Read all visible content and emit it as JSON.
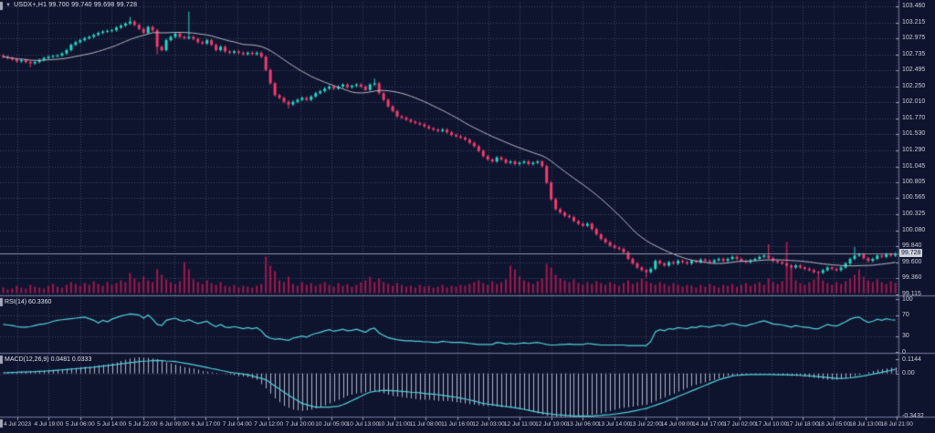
{
  "window": {
    "symbol": "USDX+,H1",
    "ohlc_text": "99.700 99.740 99.698 99.728",
    "dropdown_icon": "▼"
  },
  "indicators": {
    "rsi_label": "RSI(14) 60.3360",
    "macd_label": "MACD(12,26,9) 0.0481 0.0333"
  },
  "axes": {
    "price_ticks": [
      "103.460",
      "103.215",
      "102.975",
      "102.735",
      "102.495",
      "102.250",
      "102.010",
      "101.770",
      "101.530",
      "101.290",
      "101.045",
      "100.805",
      "100.565",
      "100.325",
      "100.080",
      "99.840",
      "99.600",
      "99.360",
      "99.115"
    ],
    "current_price": "99.728",
    "rsi_ticks": [
      "100",
      "70",
      "30",
      "0"
    ],
    "macd_ticks": [
      "0.1144",
      "0.00",
      "-0.3432"
    ],
    "time_labels": [
      "4 Jul 2023",
      "4 Jul 19:00",
      "5 Jul 06:00",
      "5 Jul 14:00",
      "5 Jul 22:00",
      "6 Jul 09:00",
      "6 Jul 17:00",
      "7 Jul 04:00",
      "7 Jul 12:00",
      "7 Jul 20:00",
      "10 Jul 05:00",
      "10 Jul 13:00",
      "10 Jul 21:00",
      "11 Jul 08:00",
      "11 Jul 16:00",
      "12 Jul 03:00",
      "12 Jul 11:00",
      "12 Jul 19:00",
      "13 Jul 06:00",
      "13 Jul 14:00",
      "13 Jul 22:00",
      "14 Jul 09:00",
      "14 Jul 17:00",
      "17 Jul 02:00",
      "17 Jul 10:00",
      "17 Jul 18:00",
      "18 Jul 05:00",
      "18 Jul 13:00",
      "18 Jul 21:00"
    ]
  },
  "colors": {
    "background": "#0f142e",
    "grid": "#3d4466",
    "bull": "#22d7c6",
    "bear": "#f13c6e",
    "ma": "#b4b8c4",
    "volume": "#a21850",
    "indicator_line": "#4fd2da",
    "histogram": "#aeb4c9",
    "axis_text": "#c9cdda",
    "separator": "#6e7694",
    "price_line": "#8e94a8",
    "badge_bg": "#ced2de",
    "badge_text": "#101530"
  },
  "chart_data": {
    "type": "candlestick",
    "title": "USDX+,H1",
    "timeframe": "H1",
    "last_ohlc": {
      "open": 99.7,
      "high": 99.74,
      "low": 99.698,
      "close": 99.728
    },
    "price_range": [
      99.115,
      103.46
    ],
    "rsi_range": [
      0,
      100
    ],
    "rsi_levels": [
      70,
      30
    ],
    "rsi_last": 60.336,
    "macd_range": [
      -0.3432,
      0.1144
    ],
    "macd_last": 0.0481,
    "macd_signal_last": 0.0333,
    "ma_period": 20,
    "closes": [
      102.7,
      102.68,
      102.66,
      102.63,
      102.65,
      102.62,
      102.6,
      102.62,
      102.65,
      102.68,
      102.7,
      102.71,
      102.72,
      102.75,
      102.8,
      102.88,
      102.92,
      102.95,
      102.98,
      103.0,
      103.03,
      103.06,
      103.08,
      103.09,
      103.1,
      103.14,
      103.17,
      103.2,
      103.23,
      103.18,
      103.12,
      103.06,
      103.15,
      103.1,
      102.85,
      102.8,
      102.95,
      103.0,
      103.05,
      103.0,
      102.98,
      103.0,
      102.97,
      102.92,
      102.9,
      102.95,
      102.88,
      102.8,
      102.85,
      102.78,
      102.76,
      102.78,
      102.76,
      102.74,
      102.76,
      102.74,
      102.76,
      102.7,
      102.5,
      102.3,
      102.12,
      102.08,
      102.02,
      101.98,
      102.02,
      102.05,
      102.08,
      102.05,
      102.1,
      102.15,
      102.18,
      102.22,
      102.25,
      102.22,
      102.25,
      102.28,
      102.24,
      102.26,
      102.28,
      102.25,
      102.2,
      102.28,
      102.3,
      102.15,
      102.05,
      101.95,
      101.88,
      101.8,
      101.78,
      101.75,
      101.72,
      101.7,
      101.68,
      101.65,
      101.62,
      101.6,
      101.58,
      101.6,
      101.56,
      101.52,
      101.5,
      101.48,
      101.45,
      101.4,
      101.35,
      101.28,
      101.2,
      101.15,
      101.12,
      101.18,
      101.15,
      101.1,
      101.12,
      101.08,
      101.1,
      101.12,
      101.08,
      101.1,
      101.12,
      101.05,
      100.8,
      100.55,
      100.4,
      100.35,
      100.3,
      100.28,
      100.22,
      100.18,
      100.15,
      100.18,
      100.1,
      100.02,
      99.95,
      99.9,
      99.85,
      99.82,
      99.8,
      99.75,
      99.65,
      99.58,
      99.52,
      99.48,
      99.45,
      99.5,
      99.62,
      99.58,
      99.55,
      99.6,
      99.58,
      99.62,
      99.6,
      99.58,
      99.62,
      99.6,
      99.64,
      99.62,
      99.6,
      99.63,
      99.65,
      99.62,
      99.65,
      99.68,
      99.65,
      99.62,
      99.6,
      99.63,
      99.65,
      99.68,
      99.7,
      99.66,
      99.62,
      99.6,
      99.58,
      99.55,
      99.52,
      99.55,
      99.52,
      99.5,
      99.48,
      99.45,
      99.44,
      99.48,
      99.52,
      99.5,
      99.48,
      99.52,
      99.58,
      99.65,
      99.7,
      99.72,
      99.66,
      99.62,
      99.65,
      99.7,
      99.68,
      99.72,
      99.7,
      99.728
    ],
    "wick_overrides": [
      [
        6,
        null,
        102.54
      ],
      [
        28,
        103.3,
        null
      ],
      [
        34,
        null,
        102.74
      ],
      [
        41,
        103.38,
        null
      ],
      [
        63,
        null,
        101.92
      ],
      [
        82,
        102.37,
        null
      ],
      [
        142,
        null,
        99.37
      ],
      [
        169,
        99.87,
        null
      ],
      [
        180,
        null,
        99.38
      ],
      [
        188,
        99.83,
        null
      ]
    ],
    "volumes": [
      6,
      4,
      5,
      8,
      6,
      5,
      9,
      7,
      6,
      5,
      8,
      10,
      7,
      6,
      9,
      12,
      10,
      8,
      11,
      9,
      13,
      10,
      8,
      12,
      9,
      11,
      14,
      12,
      22,
      16,
      12,
      18,
      14,
      12,
      26,
      20,
      15,
      12,
      10,
      13,
      34,
      26,
      15,
      12,
      10,
      14,
      11,
      9,
      12,
      8,
      7,
      9,
      6,
      8,
      7,
      6,
      8,
      10,
      40,
      30,
      24,
      14,
      12,
      18,
      10,
      8,
      12,
      9,
      11,
      8,
      10,
      12,
      9,
      7,
      11,
      8,
      10,
      7,
      9,
      12,
      14,
      18,
      12,
      16,
      12,
      10,
      8,
      11,
      9,
      7,
      8,
      6,
      9,
      7,
      8,
      6,
      7,
      9,
      6,
      8,
      7,
      9,
      8,
      10,
      12,
      14,
      11,
      9,
      13,
      10,
      12,
      15,
      30,
      26,
      18,
      14,
      12,
      10,
      13,
      16,
      32,
      28,
      20,
      16,
      14,
      12,
      15,
      11,
      9,
      12,
      10,
      13,
      11,
      9,
      12,
      10,
      8,
      11,
      14,
      10,
      12,
      16,
      13,
      11,
      9,
      12,
      10,
      8,
      11,
      9,
      7,
      9,
      8,
      6,
      9,
      7,
      10,
      8,
      6,
      9,
      8,
      10,
      7,
      9,
      11,
      8,
      10,
      12,
      9,
      16,
      12,
      10,
      13,
      56,
      30,
      14,
      11,
      9,
      12,
      15,
      18,
      14,
      11,
      9,
      12,
      10,
      13,
      16,
      20,
      26,
      18,
      14,
      12,
      15,
      12,
      10,
      13,
      11
    ],
    "rsi": [
      52,
      51,
      50,
      48,
      47,
      47,
      48,
      50,
      52,
      53,
      55,
      58,
      60,
      61,
      62,
      63,
      64,
      65,
      66,
      63,
      60,
      55,
      60,
      57,
      62,
      65,
      68,
      70,
      72,
      71,
      70,
      64,
      70,
      62,
      52,
      50,
      60,
      62,
      64,
      60,
      58,
      61,
      57,
      54,
      56,
      58,
      52,
      48,
      52,
      47,
      46,
      48,
      46,
      44,
      46,
      44,
      46,
      40,
      30,
      26,
      24,
      25,
      23,
      22,
      26,
      28,
      30,
      28,
      32,
      35,
      37,
      40,
      42,
      39,
      41,
      43,
      40,
      41,
      43,
      40,
      37,
      43,
      45,
      36,
      31,
      27,
      25,
      23,
      22,
      21,
      21,
      20,
      20,
      19,
      19,
      18,
      18,
      20,
      19,
      18,
      18,
      18,
      17,
      16,
      15,
      14,
      14,
      14,
      14,
      18,
      17,
      15,
      16,
      15,
      16,
      17,
      16,
      17,
      18,
      16,
      14,
      13,
      13,
      14,
      14,
      15,
      14,
      14,
      14,
      16,
      15,
      14,
      13,
      13,
      13,
      13,
      13,
      13,
      12,
      12,
      12,
      12,
      12,
      20,
      38,
      42,
      40,
      44,
      43,
      46,
      45,
      44,
      47,
      46,
      49,
      48,
      47,
      49,
      51,
      49,
      52,
      54,
      52,
      50,
      49,
      52,
      54,
      57,
      59,
      56,
      53,
      52,
      51,
      49,
      47,
      50,
      48,
      47,
      46,
      44,
      44,
      48,
      52,
      50,
      49,
      53,
      57,
      62,
      65,
      66,
      60,
      56,
      58,
      62,
      60,
      63,
      61,
      60.3
    ],
    "macd_hist": [
      0.01,
      0.012,
      0.013,
      0.014,
      0.015,
      0.017,
      0.018,
      0.019,
      0.02,
      0.025,
      0.028,
      0.029,
      0.03,
      0.034,
      0.038,
      0.041,
      0.045,
      0.049,
      0.053,
      0.056,
      0.06,
      0.065,
      0.07,
      0.075,
      0.08,
      0.09,
      0.1,
      0.11,
      0.12,
      0.125,
      0.13,
      0.128,
      0.125,
      0.12,
      0.115,
      0.103,
      0.09,
      0.08,
      0.07,
      0.06,
      0.05,
      0.045,
      0.04,
      0.03,
      0.02,
      0.015,
      0.01,
      0.005,
      0.0,
      -0.005,
      -0.01,
      -0.015,
      -0.02,
      -0.025,
      -0.03,
      -0.04,
      -0.05,
      -0.085,
      -0.12,
      -0.16,
      -0.2,
      -0.23,
      -0.26,
      -0.275,
      -0.29,
      -0.295,
      -0.3,
      -0.295,
      -0.29,
      -0.28,
      -0.27,
      -0.255,
      -0.24,
      -0.225,
      -0.21,
      -0.195,
      -0.18,
      -0.17,
      -0.16,
      -0.155,
      -0.15,
      -0.145,
      -0.14,
      -0.15,
      -0.16,
      -0.17,
      -0.18,
      -0.185,
      -0.19,
      -0.195,
      -0.2,
      -0.205,
      -0.21,
      -0.21,
      -0.21,
      -0.215,
      -0.22,
      -0.22,
      -0.22,
      -0.225,
      -0.23,
      -0.235,
      -0.24,
      -0.245,
      -0.25,
      -0.255,
      -0.26,
      -0.26,
      -0.26,
      -0.265,
      -0.27,
      -0.27,
      -0.27,
      -0.275,
      -0.28,
      -0.29,
      -0.3,
      -0.31,
      -0.32,
      -0.33,
      -0.34,
      -0.345,
      -0.35,
      -0.352,
      -0.355,
      -0.352,
      -0.35,
      -0.345,
      -0.34,
      -0.335,
      -0.33,
      -0.325,
      -0.32,
      -0.31,
      -0.3,
      -0.29,
      -0.28,
      -0.275,
      -0.27,
      -0.265,
      -0.26,
      -0.255,
      -0.25,
      -0.235,
      -0.22,
      -0.205,
      -0.19,
      -0.175,
      -0.16,
      -0.145,
      -0.13,
      -0.115,
      -0.1,
      -0.09,
      -0.08,
      -0.07,
      -0.06,
      -0.05,
      -0.04,
      -0.03,
      -0.02,
      -0.018,
      -0.015,
      -0.013,
      -0.01,
      -0.01,
      -0.01,
      -0.008,
      -0.005,
      -0.008,
      -0.01,
      -0.013,
      -0.015,
      -0.018,
      -0.02,
      -0.02,
      -0.02,
      -0.025,
      -0.03,
      -0.035,
      -0.04,
      -0.045,
      -0.05,
      -0.05,
      -0.05,
      -0.045,
      -0.04,
      -0.03,
      -0.02,
      -0.01,
      0.0,
      0.01,
      0.02,
      0.03,
      0.035,
      0.04,
      0.045,
      0.0481
    ],
    "macd_signal": [
      0.005,
      0.006,
      0.008,
      0.009,
      0.011,
      0.012,
      0.014,
      0.015,
      0.017,
      0.018,
      0.02,
      0.023,
      0.026,
      0.029,
      0.032,
      0.035,
      0.038,
      0.041,
      0.044,
      0.047,
      0.05,
      0.055,
      0.059,
      0.063,
      0.068,
      0.072,
      0.077,
      0.081,
      0.086,
      0.09,
      0.095,
      0.098,
      0.1,
      0.103,
      0.105,
      0.103,
      0.1,
      0.098,
      0.095,
      0.089,
      0.083,
      0.077,
      0.07,
      0.063,
      0.055,
      0.048,
      0.04,
      0.033,
      0.025,
      0.018,
      0.01,
      0.005,
      0.0,
      -0.005,
      -0.01,
      -0.02,
      -0.03,
      -0.04,
      -0.05,
      -0.075,
      -0.1,
      -0.125,
      -0.15,
      -0.173,
      -0.195,
      -0.218,
      -0.24,
      -0.25,
      -0.26,
      -0.27,
      -0.27,
      -0.27,
      -0.27,
      -0.266,
      -0.262,
      -0.25,
      -0.235,
      -0.218,
      -0.2,
      -0.183,
      -0.165,
      -0.15,
      -0.143,
      -0.139,
      -0.135,
      -0.136,
      -0.138,
      -0.14,
      -0.143,
      -0.146,
      -0.15,
      -0.152,
      -0.155,
      -0.16,
      -0.163,
      -0.166,
      -0.17,
      -0.175,
      -0.18,
      -0.185,
      -0.19,
      -0.197,
      -0.205,
      -0.212,
      -0.22,
      -0.23,
      -0.24,
      -0.245,
      -0.25,
      -0.255,
      -0.26,
      -0.265,
      -0.27,
      -0.275,
      -0.28,
      -0.287,
      -0.295,
      -0.302,
      -0.31,
      -0.315,
      -0.32,
      -0.325,
      -0.33,
      -0.332,
      -0.335,
      -0.337,
      -0.34,
      -0.34,
      -0.34,
      -0.34,
      -0.34,
      -0.337,
      -0.335,
      -0.332,
      -0.33,
      -0.325,
      -0.32,
      -0.315,
      -0.31,
      -0.302,
      -0.295,
      -0.287,
      -0.28,
      -0.267,
      -0.255,
      -0.242,
      -0.23,
      -0.215,
      -0.2,
      -0.185,
      -0.17,
      -0.155,
      -0.14,
      -0.125,
      -0.11,
      -0.095,
      -0.08,
      -0.065,
      -0.05,
      -0.04,
      -0.03,
      -0.02,
      -0.015,
      -0.012,
      -0.01,
      -0.009,
      -0.009,
      -0.008,
      -0.008,
      -0.009,
      -0.009,
      -0.01,
      -0.01,
      -0.011,
      -0.012,
      -0.013,
      -0.015,
      -0.017,
      -0.02,
      -0.022,
      -0.025,
      -0.028,
      -0.032,
      -0.036,
      -0.04,
      -0.039,
      -0.038,
      -0.035,
      -0.03,
      -0.025,
      -0.02,
      -0.012,
      -0.005,
      0.002,
      0.01,
      0.017,
      0.025,
      0.0333
    ]
  }
}
